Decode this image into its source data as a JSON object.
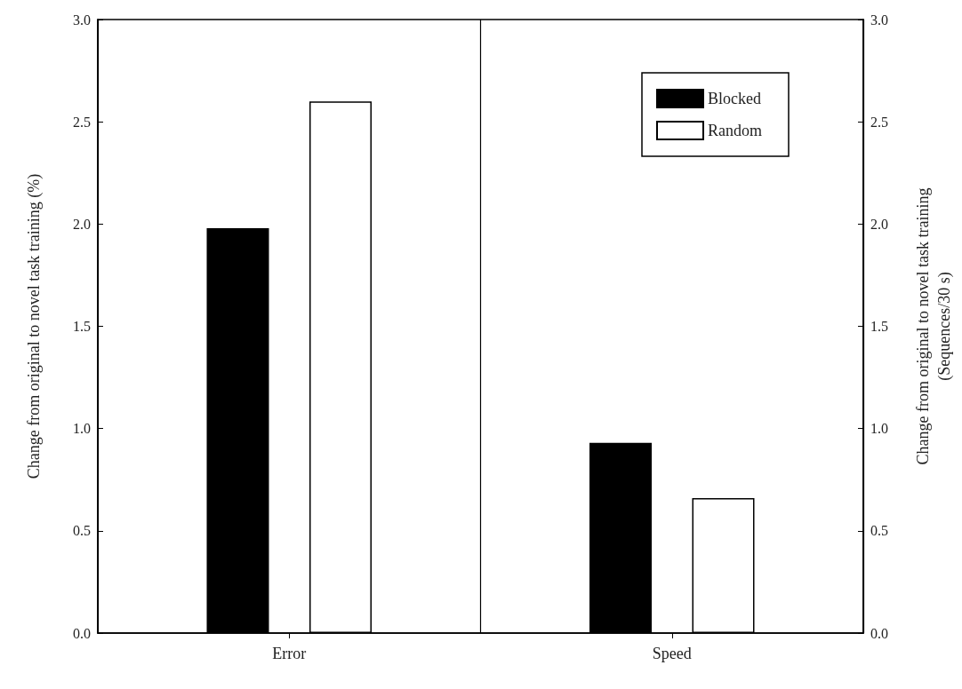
{
  "chart_data": {
    "type": "bar",
    "categories": [
      "Error",
      "Speed"
    ],
    "ylabel": "Change from original to novel task training (%)",
    "y2label": "Change from original to novel task training\n(Sequences/30 s)",
    "series": [
      {
        "name": "Blocked",
        "color": "#000000",
        "values": [
          1.98,
          0.93
        ]
      },
      {
        "name": "Random",
        "color": "#ffffff",
        "values": [
          2.6,
          0.66
        ]
      }
    ],
    "ylim": [
      0,
      3
    ],
    "yticks": [
      {
        "value": 0,
        "label": "0.0"
      },
      0.5,
      {
        "value": 1,
        "label": "1.0"
      },
      1.5,
      {
        "value": 2,
        "label": "2.0"
      },
      2.5,
      {
        "value": 3,
        "label": "3.0"
      }
    ],
    "y2lim": [
      0,
      3
    ],
    "y2ticks": [
      {
        "value": 0,
        "label": "0.0"
      },
      0.5,
      {
        "value": 1,
        "label": "1.0"
      },
      1.5,
      {
        "value": 2,
        "label": "2.0"
      },
      2.5,
      {
        "value": 3,
        "label": "3.0"
      }
    ],
    "grid": "x",
    "legend": "top right"
  }
}
